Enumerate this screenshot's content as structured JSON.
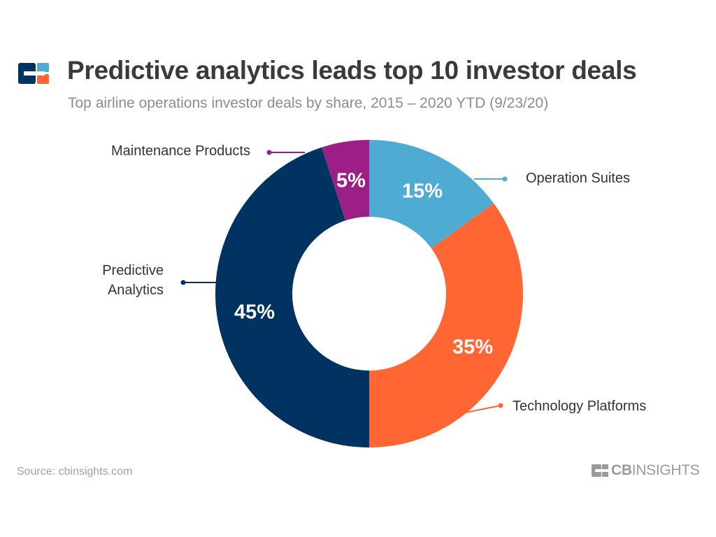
{
  "title": "Predictive analytics leads top 10 investor deals",
  "subtitle": "Top airline operations investor deals by share, 2015 – 2020 YTD (9/23/20)",
  "source": "Source: cbinsights.com",
  "brand": {
    "cb": "CB",
    "insights": "INSIGHTS"
  },
  "colors": {
    "operation_suites": "#4fabd2",
    "technology_platforms": "#ff6633",
    "predictive_analytics": "#003262",
    "maintenance_products": "#9c1f88",
    "title_text": "#3a3a3a",
    "label_text": "#333333",
    "logo_navy": "#003262",
    "logo_orange": "#ff6633",
    "logo_blue": "#4fabd2"
  },
  "chart_data": {
    "type": "pie",
    "donut": true,
    "title": "Predictive analytics leads top 10 investor deals",
    "subtitle": "Top airline operations investor deals by share, 2015 – 2020 YTD (9/23/20)",
    "slices": [
      {
        "label": "Operation Suites",
        "value": 15,
        "display": "15%",
        "color": "#4fabd2"
      },
      {
        "label": "Technology Platforms",
        "value": 35,
        "display": "35%",
        "color": "#ff6633"
      },
      {
        "label": "Predictive Analytics",
        "value": 45,
        "display": "45%",
        "color": "#003262"
      },
      {
        "label": "Maintenance Products",
        "value": 5,
        "display": "5%",
        "color": "#9c1f88"
      }
    ]
  }
}
